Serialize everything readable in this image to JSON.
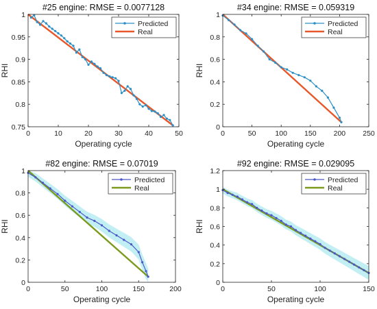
{
  "chart_data": [
    {
      "type": "line",
      "title": "#25 engine: RMSE = 0.0077128",
      "xlabel": "Operating cycle",
      "ylabel": "RHI",
      "xlim": [
        0,
        50
      ],
      "ylim": [
        0.75,
        1
      ],
      "xticks": [
        0,
        10,
        20,
        30,
        40,
        50
      ],
      "yticks": [
        0.75,
        0.8,
        0.85,
        0.9,
        0.95,
        1
      ],
      "xtick_labels": [
        "0",
        "10",
        "20",
        "30",
        "40",
        "50"
      ],
      "ytick_labels": [
        "0.75",
        "0.8",
        "0.85",
        "0.9",
        "0.95",
        "1"
      ],
      "legend_position": "top-right",
      "band": false,
      "series": [
        {
          "name": "Predicted",
          "style": "line-dots",
          "color": "#2b8fc6",
          "x": [
            1,
            2,
            3,
            4,
            5,
            6,
            7,
            8,
            9,
            10,
            11,
            12,
            13,
            14,
            15,
            16,
            17,
            18,
            19,
            20,
            21,
            22,
            23,
            24,
            25,
            26,
            27,
            28,
            29,
            30,
            31,
            32,
            33,
            34,
            35,
            36,
            37,
            38,
            39,
            40,
            41,
            42,
            43,
            44,
            45,
            46,
            47,
            48
          ],
          "y": [
            0.993,
            0.998,
            0.983,
            0.977,
            0.985,
            0.98,
            0.973,
            0.968,
            0.963,
            0.958,
            0.953,
            0.947,
            0.94,
            0.935,
            0.93,
            0.915,
            0.922,
            0.905,
            0.9,
            0.888,
            0.895,
            0.89,
            0.884,
            0.88,
            0.87,
            0.865,
            0.862,
            0.86,
            0.858,
            0.852,
            0.825,
            0.83,
            0.84,
            0.834,
            0.82,
            0.812,
            0.8,
            0.795,
            0.798,
            0.79,
            0.785,
            0.784,
            0.78,
            0.772,
            0.776,
            0.768,
            0.765,
            0.753
          ]
        },
        {
          "name": "Real",
          "style": "line",
          "color": "#e8572a",
          "x": [
            0,
            48
          ],
          "y": [
            1.0,
            0.753
          ]
        }
      ]
    },
    {
      "type": "line",
      "title": "#34 engine: RMSE = 0.059319",
      "xlabel": "Operating cycle",
      "ylabel": "RHI",
      "xlim": [
        0,
        250
      ],
      "ylim": [
        0,
        1
      ],
      "xticks": [
        0,
        50,
        100,
        150,
        200,
        250
      ],
      "yticks": [
        0,
        0.2,
        0.4,
        0.6,
        0.8,
        1
      ],
      "xtick_labels": [
        "0",
        "50",
        "100",
        "150",
        "200",
        "250"
      ],
      "ytick_labels": [
        "0",
        "0.2",
        "0.4",
        "0.6",
        "0.8",
        "1"
      ],
      "legend_position": "top-right",
      "band": false,
      "series": [
        {
          "name": "Predicted",
          "style": "line-dots",
          "color": "#2b8fc6",
          "x": [
            0,
            10,
            20,
            30,
            40,
            50,
            60,
            70,
            80,
            90,
            100,
            110,
            120,
            130,
            140,
            150,
            160,
            170,
            180,
            190,
            200,
            203
          ],
          "y": [
            0.99,
            0.95,
            0.91,
            0.86,
            0.83,
            0.78,
            0.72,
            0.67,
            0.6,
            0.57,
            0.53,
            0.51,
            0.48,
            0.46,
            0.44,
            0.41,
            0.36,
            0.32,
            0.26,
            0.17,
            0.08,
            0.04
          ]
        },
        {
          "name": "Real",
          "style": "line",
          "color": "#e8572a",
          "x": [
            0,
            203
          ],
          "y": [
            1.0,
            0.04
          ]
        }
      ]
    },
    {
      "type": "line",
      "title": "#82 engine: RMSE = 0.07019",
      "xlabel": "Operating cycle",
      "ylabel": "RHI",
      "xlim": [
        0,
        200
      ],
      "ylim": [
        0,
        1
      ],
      "xticks": [
        0,
        50,
        100,
        150,
        200
      ],
      "yticks": [
        0,
        0.2,
        0.4,
        0.6,
        0.8,
        1
      ],
      "xtick_labels": [
        "0",
        "50",
        "100",
        "150",
        "200"
      ],
      "ytick_labels": [
        "0",
        "0.2",
        "0.4",
        "0.6",
        "0.8",
        "1"
      ],
      "legend_position": "top-right",
      "band": true,
      "band_color": "#b6ecf2",
      "series": [
        {
          "name": "Predicted",
          "style": "line-dots",
          "color": "#4c57c9",
          "x": [
            0,
            10,
            20,
            30,
            40,
            50,
            60,
            70,
            80,
            90,
            100,
            110,
            120,
            130,
            140,
            150,
            155,
            160,
            163
          ],
          "y": [
            0.98,
            0.94,
            0.89,
            0.84,
            0.79,
            0.73,
            0.68,
            0.63,
            0.58,
            0.55,
            0.51,
            0.46,
            0.42,
            0.38,
            0.34,
            0.27,
            0.18,
            0.1,
            0.05
          ]
        },
        {
          "name": "Real",
          "style": "line",
          "color": "#7c9a1e",
          "x": [
            0,
            163
          ],
          "y": [
            1.0,
            0.05
          ]
        }
      ]
    },
    {
      "type": "line",
      "title": "#92 engine: RMSE = 0.029095",
      "xlabel": "Operating cycle",
      "ylabel": "RHI",
      "xlim": [
        0,
        150
      ],
      "ylim": [
        0,
        1.2
      ],
      "xticks": [
        0,
        50,
        100,
        150
      ],
      "yticks": [
        0,
        0.2,
        0.4,
        0.6,
        0.8,
        1,
        1.2
      ],
      "xtick_labels": [
        "0",
        "50",
        "100",
        "150"
      ],
      "ytick_labels": [
        "0",
        "0.2",
        "0.4",
        "0.6",
        "0.8",
        "1",
        "1.2"
      ],
      "legend_position": "top-right",
      "band": true,
      "band_color": "#b6ecf2",
      "series": [
        {
          "name": "Predicted",
          "style": "line-dots",
          "color": "#4c57c9",
          "x": [
            0,
            5,
            10,
            15,
            20,
            25,
            30,
            35,
            40,
            45,
            50,
            55,
            60,
            65,
            70,
            75,
            80,
            85,
            90,
            95,
            100,
            105,
            110,
            115,
            120,
            125,
            130,
            135,
            140,
            145,
            150
          ],
          "y": [
            0.99,
            0.96,
            0.94,
            0.92,
            0.89,
            0.86,
            0.84,
            0.8,
            0.77,
            0.74,
            0.72,
            0.69,
            0.66,
            0.62,
            0.6,
            0.56,
            0.53,
            0.5,
            0.47,
            0.44,
            0.41,
            0.37,
            0.34,
            0.31,
            0.28,
            0.25,
            0.22,
            0.19,
            0.16,
            0.13,
            0.1
          ]
        },
        {
          "name": "Real",
          "style": "line",
          "color": "#7c9a1e",
          "x": [
            0,
            150
          ],
          "y": [
            1.0,
            0.1
          ]
        }
      ]
    }
  ]
}
